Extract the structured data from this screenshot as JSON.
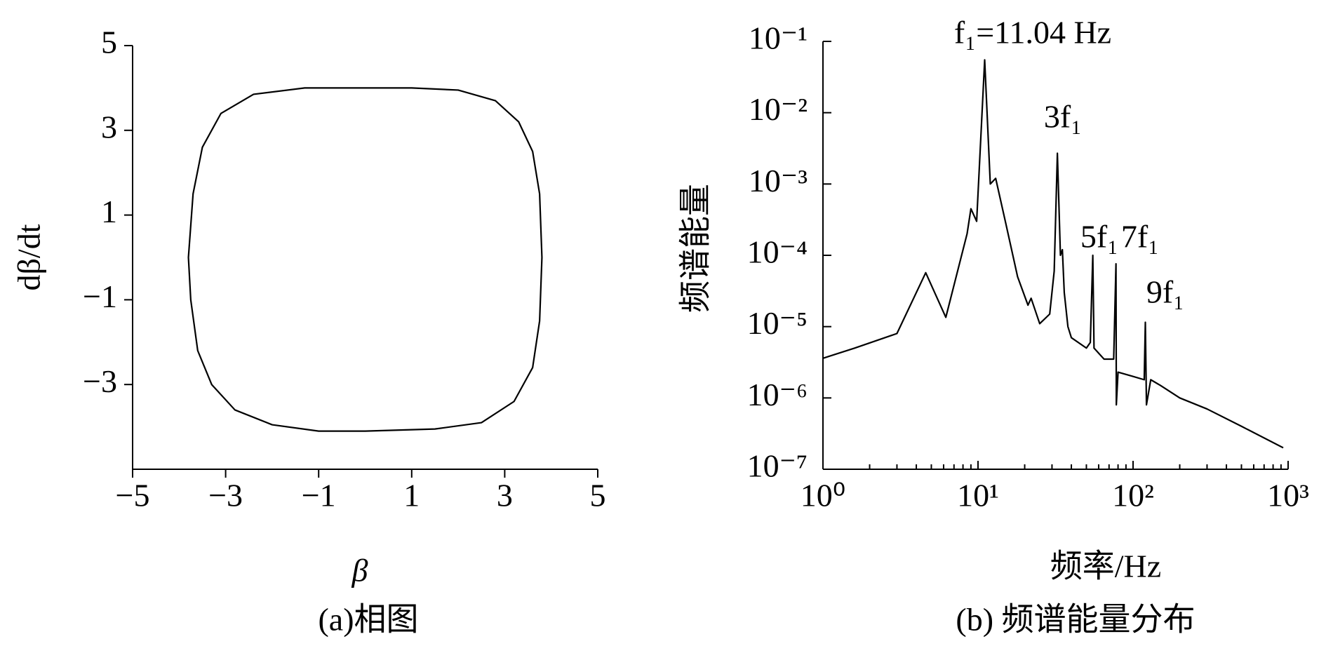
{
  "chart_data": [
    {
      "type": "line",
      "xlabel": "β",
      "ylabel": "dβ/dt",
      "caption": "(a)相图",
      "color": "#000000",
      "x": [
        0,
        1,
        2,
        2.8,
        3.3,
        3.6,
        3.75,
        3.8,
        3.75,
        3.6,
        3.2,
        2.5,
        1.5,
        0,
        -1,
        -2,
        -2.8,
        -3.3,
        -3.6,
        -3.75,
        -3.8,
        -3.7,
        -3.5,
        -3.1,
        -2.4,
        -1.3,
        0
      ],
      "values": [
        4.0,
        4.0,
        3.95,
        3.7,
        3.2,
        2.5,
        1.5,
        0,
        -1.5,
        -2.6,
        -3.4,
        -3.9,
        -4.05,
        -4.1,
        -4.1,
        -3.95,
        -3.6,
        -3.0,
        -2.2,
        -1,
        0,
        1.5,
        2.6,
        3.4,
        3.85,
        4.0,
        4.0
      ],
      "xlim": [
        -5,
        5
      ],
      "ylim": [
        -5,
        5
      ],
      "xticks": [
        {
          "value": -5,
          "label": "−5"
        },
        {
          "value": -3,
          "label": "−3"
        },
        {
          "value": -1,
          "label": "−1"
        },
        1,
        3,
        5
      ],
      "yticks": [
        {
          "value": -3,
          "label": "−3"
        },
        {
          "value": -1,
          "label": "−1"
        },
        1,
        3,
        5
      ]
    },
    {
      "type": "line",
      "xlabel": "频率/Hz",
      "ylabel": "频谱能量",
      "caption": "(b) 频谱能量分布",
      "color": "#000000",
      "xscale": "log",
      "yscale": "log",
      "x": [
        1,
        1.6,
        3,
        4.6,
        6.2,
        8.5,
        9,
        9.8,
        11.04,
        12,
        13,
        15,
        18,
        21,
        22,
        25,
        29,
        31,
        32.5,
        34,
        35,
        36,
        38,
        40,
        50,
        53,
        55,
        56,
        65,
        75,
        77.6,
        78,
        80,
        100,
        118,
        120,
        122,
        130,
        150,
        200,
        300,
        500,
        930
      ],
      "values": [
        3.6e-06,
        5e-06,
        8e-06,
        5.7e-05,
        1.35e-05,
        0.0002,
        0.00045,
        0.0003,
        0.055,
        0.001,
        0.0012,
        0.0003,
        5e-05,
        2e-05,
        2.5e-05,
        1.1e-05,
        1.5e-05,
        6e-05,
        0.0027,
        0.0001,
        0.00012,
        3e-05,
        1e-05,
        7e-06,
        5e-06,
        6e-06,
        0.0001,
        5e-06,
        3.5e-06,
        3.5e-06,
        7.6e-05,
        8e-07,
        2.3e-06,
        2e-06,
        1.8e-06,
        1.15e-05,
        8e-07,
        1.8e-06,
        1.5e-06,
        1e-06,
        7e-07,
        4e-07,
        2e-07
      ],
      "xlim": [
        1,
        1000
      ],
      "ylim": [
        1e-07,
        0.1
      ],
      "xticks": [
        {
          "value": 1,
          "label": "10⁰"
        },
        {
          "value": 10,
          "label": "10¹"
        },
        {
          "value": 100,
          "label": "10²"
        },
        {
          "value": 1000,
          "label": "10³"
        }
      ],
      "yticks": [
        {
          "value": 1e-07,
          "label": "10⁻⁷"
        },
        {
          "value": 1e-06,
          "label": "10⁻⁶"
        },
        {
          "value": 1e-05,
          "label": "10⁻⁵"
        },
        {
          "value": 0.0001,
          "label": "10⁻⁴"
        },
        {
          "value": 0.001,
          "label": "10⁻³"
        },
        {
          "value": 0.01,
          "label": "10⁻²"
        },
        {
          "value": 0.1,
          "label": "10⁻¹"
        }
      ],
      "annotations": [
        "f₁=11.04 Hz",
        "3f₁",
        "5f₁",
        "7f₁",
        "9f₁"
      ]
    }
  ]
}
